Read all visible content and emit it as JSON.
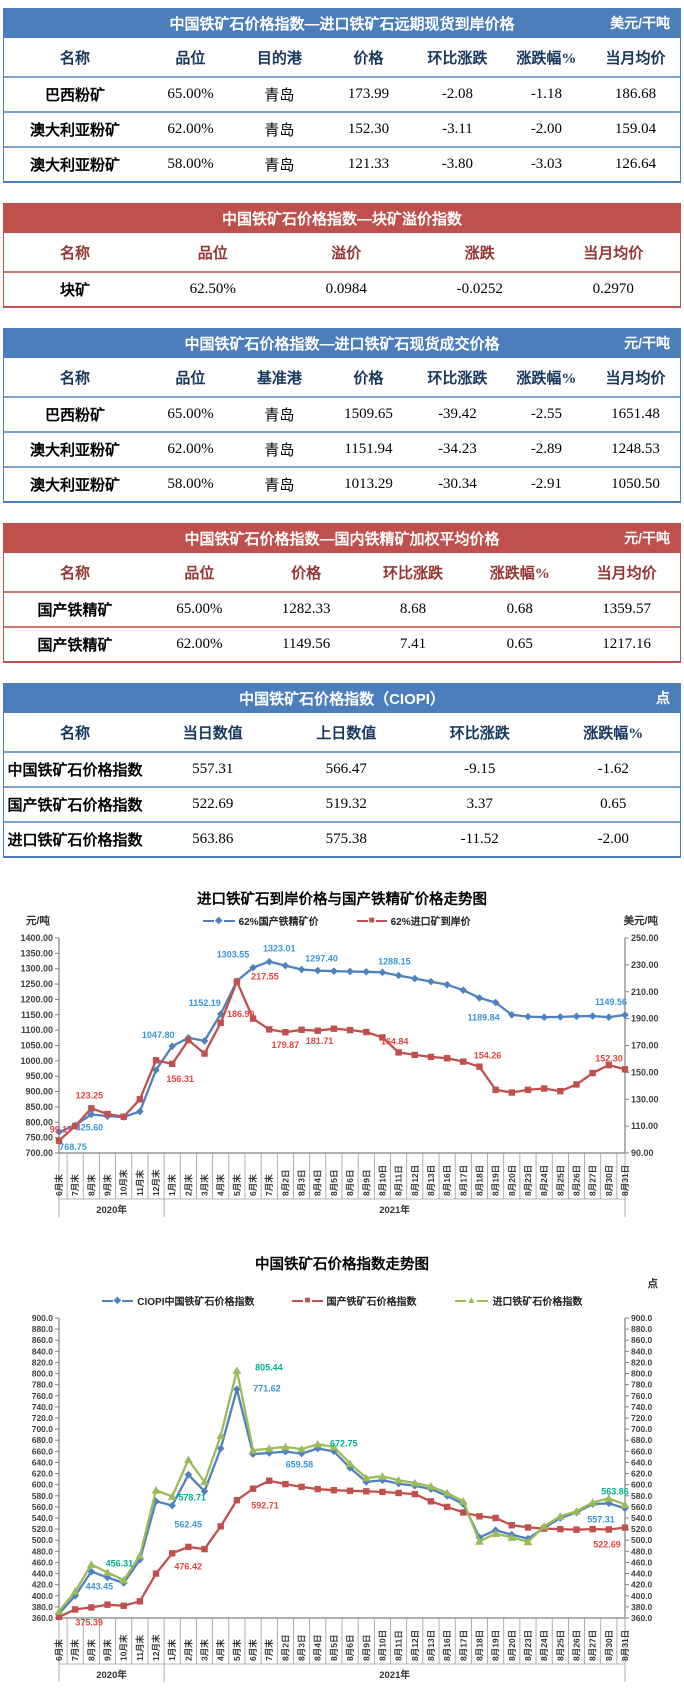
{
  "theme": {
    "blue_header": "#4C7EBC",
    "blue_line": "#7CA2D6",
    "blue_header_text": "#17375E",
    "red_header": "#C0504D",
    "red_line": "#CC7A77",
    "red_header_text": "#943634"
  },
  "tables": [
    {
      "title": "中国铁矿石价格指数—进口铁矿石远期现货到岸价格",
      "unit": "美元/干吨",
      "theme": "blue",
      "headers": [
        "名称",
        "品位",
        "目的港",
        "价格",
        "环比涨跌",
        "涨跌幅%",
        "当月均价"
      ],
      "rows": [
        [
          "巴西粉矿",
          "65.00%",
          "青岛",
          "173.99",
          "-2.08",
          "-1.18",
          "186.68"
        ],
        [
          "澳大利亚粉矿",
          "62.00%",
          "青岛",
          "152.30",
          "-3.11",
          "-2.00",
          "159.04"
        ],
        [
          "澳大利亚粉矿",
          "58.00%",
          "青岛",
          "121.33",
          "-3.80",
          "-3.03",
          "126.64"
        ]
      ]
    },
    {
      "title": "中国铁矿石价格指数—块矿溢价指数",
      "unit": "",
      "theme": "red",
      "headers": [
        "名称",
        "品位",
        "溢价",
        "涨跌",
        "当月均价"
      ],
      "rows": [
        [
          "块矿",
          "62.50%",
          "0.0984",
          "-0.0252",
          "0.2970"
        ]
      ]
    },
    {
      "title": "中国铁矿石价格指数—进口铁矿石现货成交价格",
      "unit": "元/干吨",
      "theme": "blue",
      "headers": [
        "名称",
        "品位",
        "基准港",
        "价格",
        "环比涨跌",
        "涨跌幅%",
        "当月均价"
      ],
      "rows": [
        [
          "巴西粉矿",
          "65.00%",
          "青岛",
          "1509.65",
          "-39.42",
          "-2.55",
          "1651.48"
        ],
        [
          "澳大利亚粉矿",
          "62.00%",
          "青岛",
          "1151.94",
          "-34.23",
          "-2.89",
          "1248.53"
        ],
        [
          "澳大利亚粉矿",
          "58.00%",
          "青岛",
          "1013.29",
          "-30.34",
          "-2.91",
          "1050.50"
        ]
      ]
    },
    {
      "title": "中国铁矿石价格指数—国内铁精矿加权平均价格",
      "unit": "元/干吨",
      "theme": "red",
      "headers": [
        "名称",
        "品位",
        "价格",
        "环比涨跌",
        "涨跌幅%",
        "当月均价"
      ],
      "rows": [
        [
          "国产铁精矿",
          "65.00%",
          "1282.33",
          "8.68",
          "0.68",
          "1359.57"
        ],
        [
          "国产铁精矿",
          "62.00%",
          "1149.56",
          "7.41",
          "0.65",
          "1217.16"
        ]
      ]
    },
    {
      "title": "中国铁矿石价格指数（CIOPI）",
      "unit": "点",
      "theme": "blue",
      "headers": [
        "名称",
        "当日数值",
        "上日数值",
        "环比涨跌",
        "涨跌幅%"
      ],
      "rows": [
        [
          "中国铁矿石价格指数",
          "557.31",
          "566.47",
          "-9.15",
          "-1.62"
        ],
        [
          "国产铁矿石价格指数",
          "522.69",
          "519.32",
          "3.37",
          "0.65"
        ],
        [
          "进口铁矿石价格指数",
          "563.86",
          "575.38",
          "-11.52",
          "-2.00"
        ]
      ]
    }
  ],
  "chart_data": [
    {
      "type": "line",
      "title": "进口铁矿石到岸价格与国产铁精矿价格走势图",
      "left_axis": {
        "label": "元/吨",
        "min": 700,
        "max": 1400,
        "step": 50,
        "decimals": 2
      },
      "right_axis": {
        "label": "美元/吨",
        "min": 90,
        "max": 250,
        "step": 20,
        "decimals": 2
      },
      "categories": [
        "6月末",
        "7月末",
        "8月末",
        "9月末",
        "10月末",
        "11月末",
        "12月末",
        "1月末",
        "2月末",
        "3月末",
        "4月末",
        "5月末",
        "6月末",
        "7月末",
        "8月2日",
        "8月3日",
        "8月4日",
        "8月5日",
        "8月6日",
        "8月9日",
        "8月10日",
        "8月11日",
        "8月12日",
        "8月13日",
        "8月16日",
        "8月17日",
        "8月18日",
        "8月19日",
        "8月20日",
        "8月23日",
        "8月24日",
        "8月25日",
        "8月26日",
        "8月27日",
        "8月30日",
        "8月31日"
      ],
      "year_groups": [
        {
          "label": "2020年",
          "count": 7
        },
        {
          "label": "2021年",
          "count": 29
        }
      ],
      "legend_position": "top",
      "grid": false,
      "series": [
        {
          "name": "62%国产铁精矿价",
          "color": "#4F81BD",
          "label_color": "#3B95D8",
          "marker": "diamond",
          "axis": "left",
          "values": [
            768.75,
            790,
            825.6,
            820,
            817,
            835,
            970,
            1047.8,
            1075,
            1065,
            1152.19,
            1260,
            1303.55,
            1323.01,
            1310,
            1297.4,
            1294,
            1292,
            1291,
            1290,
            1288.15,
            1278,
            1268,
            1258,
            1248,
            1230,
            1205,
            1189.84,
            1150,
            1144,
            1142,
            1143,
            1145,
            1146,
            1142.15,
            1149.56
          ],
          "labels": [
            [
              0,
              "768.75",
              14,
              18
            ],
            [
              2,
              "825.60",
              -2,
              16
            ],
            [
              7,
              "1047.80",
              -14,
              -8
            ],
            [
              10,
              "1152.19",
              -16,
              -8
            ],
            [
              12,
              "1303.55",
              -20,
              -10
            ],
            [
              13,
              "1323.01",
              10,
              -10
            ],
            [
              15,
              "1297.40",
              20,
              -8
            ],
            [
              20,
              "1288.15",
              12,
              -8
            ],
            [
              27,
              "1189.84",
              -12,
              18
            ],
            [
              35,
              "1149.56",
              -14,
              -10
            ]
          ]
        },
        {
          "name": "62%进口矿到岸价",
          "color": "#C0504D",
          "label_color": "#E8433F",
          "marker": "square",
          "axis": "right",
          "values": [
            99.17,
            110,
            123.25,
            119,
            117,
            130,
            159,
            156.31,
            174,
            164,
            186.9,
            217.55,
            190,
            182,
            179.87,
            181.71,
            181,
            182.5,
            181.5,
            180,
            176,
            164.84,
            163,
            161.5,
            160.5,
            158,
            154.26,
            137,
            135,
            137,
            138,
            136,
            141,
            149.5,
            155.41,
            152.3
          ],
          "labels": [
            [
              0,
              "99.17",
              2,
              -8
            ],
            [
              2,
              "123.25",
              -2,
              -10
            ],
            [
              7,
              "156.31",
              8,
              18
            ],
            [
              10,
              "186.90",
              20,
              -6
            ],
            [
              11,
              "217.55",
              28,
              -2
            ],
            [
              14,
              "179.87",
              0,
              16
            ],
            [
              15,
              "181.71",
              18,
              14
            ],
            [
              21,
              "164.84",
              -4,
              -8
            ],
            [
              26,
              "154.26",
              8,
              -8
            ],
            [
              35,
              "152.30",
              -16,
              -8
            ]
          ]
        }
      ]
    },
    {
      "type": "line",
      "title": "中国铁矿石价格指数走势图",
      "unit": "点",
      "left_axis": {
        "label": "",
        "min": 360,
        "max": 900,
        "step": 20,
        "decimals": 1
      },
      "right_axis": {
        "label": "",
        "min": 360,
        "max": 900,
        "step": 20,
        "decimals": 1
      },
      "categories": [
        "6月末",
        "7月末",
        "8月末",
        "9月末",
        "10月末",
        "11月末",
        "12月末",
        "1月末",
        "2月末",
        "3月末",
        "4月末",
        "5月末",
        "6月末",
        "7月末",
        "8月2日",
        "8月3日",
        "8月4日",
        "8月5日",
        "8月6日",
        "8月9日",
        "8月10日",
        "8月11日",
        "8月12日",
        "8月13日",
        "8月16日",
        "8月17日",
        "8月18日",
        "8月19日",
        "8月20日",
        "8月23日",
        "8月24日",
        "8月25日",
        "8月26日",
        "8月27日",
        "8月30日",
        "8月31日"
      ],
      "year_groups": [
        {
          "label": "2020年",
          "count": 7
        },
        {
          "label": "2021年",
          "count": 29
        }
      ],
      "legend_position": "top",
      "grid": false,
      "series": [
        {
          "name": "CIOPI中国铁矿石价格指数",
          "color": "#4F81BD",
          "label_color": "#3B95D8",
          "marker": "diamond",
          "axis": "left",
          "values": [
            368,
            400,
            443.45,
            433,
            423,
            465,
            570,
            562.45,
            618,
            588,
            665,
            771.62,
            655,
            657,
            659.58,
            656,
            665,
            660,
            630,
            605,
            608,
            602,
            598,
            592,
            580,
            565,
            505,
            518,
            510,
            503,
            522,
            540,
            550,
            565,
            566.47,
            557.31
          ],
          "labels": [
            [
              2,
              "443.45",
              8,
              18
            ],
            [
              7,
              "562.45",
              16,
              22
            ],
            [
              11,
              "771.62",
              30,
              2
            ],
            [
              14,
              "659.58",
              14,
              16
            ],
            [
              35,
              "557.31",
              -24,
              14
            ]
          ]
        },
        {
          "name": "国产铁矿石价格指数",
          "color": "#C0504D",
          "label_color": "#E8433F",
          "marker": "square",
          "axis": "left",
          "values": [
            362,
            375.39,
            379,
            384,
            382,
            390,
            440,
            476.42,
            488,
            484,
            525,
            572,
            592.71,
            607,
            601,
            596,
            592,
            590,
            589,
            588,
            587,
            585,
            583,
            570,
            560,
            550,
            543,
            540,
            527,
            523,
            521,
            520,
            519,
            520,
            519.32,
            522.69
          ],
          "labels": [
            [
              1,
              "375.39",
              14,
              16
            ],
            [
              7,
              "476.42",
              16,
              16
            ],
            [
              12,
              "592.71",
              12,
              20
            ],
            [
              35,
              "522.69",
              -18,
              20
            ]
          ]
        },
        {
          "name": "进口铁矿石价格指数",
          "color": "#9BBB59",
          "label_color": "#00B189",
          "marker": "triangle",
          "axis": "left",
          "values": [
            372,
            408,
            456.31,
            442,
            428,
            472,
            590,
            578.71,
            645,
            605,
            688,
            805.44,
            662,
            665,
            668,
            664,
            672.75,
            668,
            638,
            612,
            615,
            608,
            603,
            597,
            585,
            570,
            498,
            512,
            505,
            497,
            525,
            543,
            552,
            568,
            575.38,
            563.86
          ],
          "labels": [
            [
              2,
              "456.31",
              28,
              2
            ],
            [
              7,
              "578.71",
              20,
              4
            ],
            [
              11,
              "805.44",
              32,
              0
            ],
            [
              16,
              "672.75",
              26,
              2
            ],
            [
              35,
              "563.86",
              -10,
              -10
            ]
          ]
        }
      ]
    }
  ]
}
